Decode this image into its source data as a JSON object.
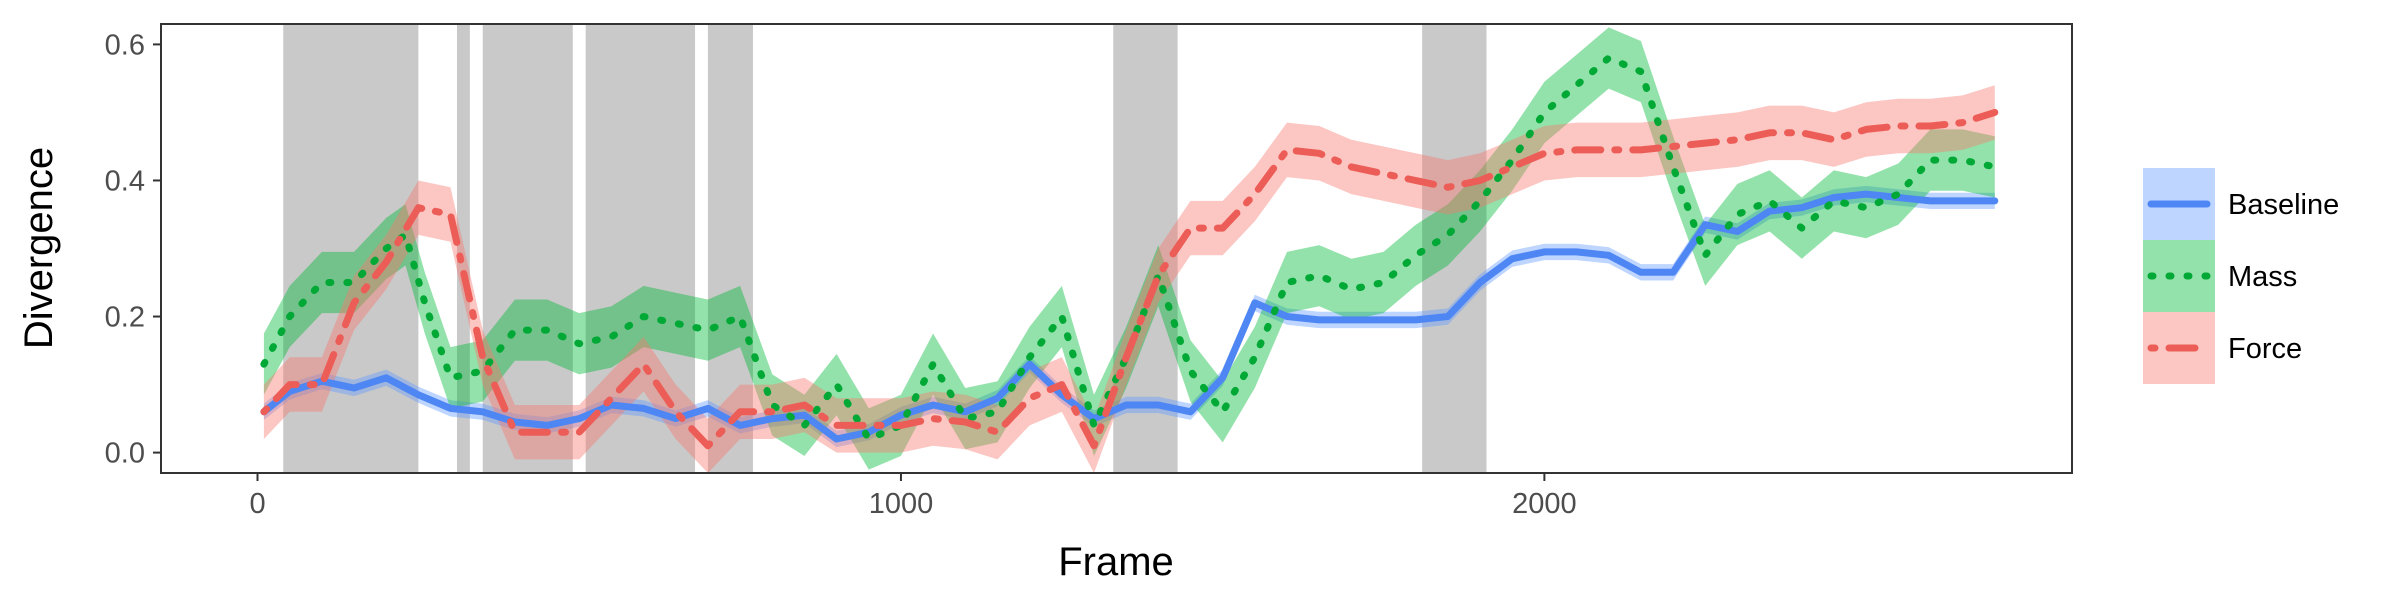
{
  "chart_data": {
    "type": "line",
    "xlabel": "Frame",
    "ylabel": "Divergence",
    "xlim": [
      -150,
      2820
    ],
    "ylim": [
      -0.03,
      0.63
    ],
    "x_ticks": [
      0,
      1000,
      2000
    ],
    "x_tick_labels": [
      "0",
      "1000",
      "2000"
    ],
    "y_ticks": [
      0.0,
      0.2,
      0.4,
      0.6
    ],
    "y_tick_labels": [
      "0.0",
      "0.2",
      "0.4",
      "0.6"
    ],
    "grid": false,
    "legend_position": "right",
    "shaded_regions": [
      [
        40,
        250
      ],
      [
        310,
        330
      ],
      [
        350,
        490
      ],
      [
        510,
        680
      ],
      [
        700,
        770
      ],
      [
        1330,
        1430
      ],
      [
        1810,
        1910
      ]
    ],
    "series": [
      {
        "name": "Baseline",
        "color": "#619CFF",
        "line_color": "#4E86F4",
        "dash": "solid",
        "x": [
          10,
          50,
          100,
          150,
          200,
          250,
          300,
          350,
          400,
          450,
          500,
          550,
          600,
          650,
          700,
          750,
          800,
          850,
          900,
          950,
          1000,
          1050,
          1100,
          1150,
          1200,
          1250,
          1300,
          1350,
          1400,
          1450,
          1500,
          1550,
          1600,
          1650,
          1700,
          1750,
          1800,
          1850,
          1900,
          1950,
          2000,
          2050,
          2100,
          2150,
          2200,
          2250,
          2300,
          2350,
          2400,
          2450,
          2500,
          2550,
          2600,
          2650,
          2700
        ],
        "y": [
          0.06,
          0.09,
          0.105,
          0.095,
          0.11,
          0.085,
          0.065,
          0.06,
          0.045,
          0.04,
          0.05,
          0.07,
          0.065,
          0.05,
          0.065,
          0.04,
          0.05,
          0.055,
          0.02,
          0.03,
          0.055,
          0.07,
          0.06,
          0.08,
          0.13,
          0.085,
          0.05,
          0.07,
          0.07,
          0.06,
          0.11,
          0.22,
          0.2,
          0.195,
          0.195,
          0.195,
          0.195,
          0.2,
          0.25,
          0.285,
          0.295,
          0.295,
          0.29,
          0.265,
          0.265,
          0.335,
          0.325,
          0.355,
          0.36,
          0.375,
          0.38,
          0.375,
          0.37,
          0.37,
          0.37
        ],
        "band": 0.012
      },
      {
        "name": "Mass",
        "color": "#00BA38",
        "line_color": "#00A835",
        "dash": "dotted",
        "x": [
          10,
          50,
          100,
          150,
          200,
          230,
          260,
          300,
          350,
          400,
          450,
          500,
          550,
          600,
          650,
          700,
          750,
          800,
          850,
          900,
          950,
          1000,
          1050,
          1100,
          1150,
          1200,
          1250,
          1300,
          1350,
          1400,
          1450,
          1500,
          1550,
          1600,
          1650,
          1700,
          1750,
          1800,
          1850,
          1900,
          1950,
          2000,
          2050,
          2100,
          2150,
          2200,
          2250,
          2300,
          2350,
          2400,
          2450,
          2500,
          2550,
          2600,
          2650,
          2700
        ],
        "y": [
          0.13,
          0.2,
          0.25,
          0.25,
          0.3,
          0.32,
          0.22,
          0.11,
          0.12,
          0.18,
          0.18,
          0.16,
          0.17,
          0.2,
          0.19,
          0.18,
          0.2,
          0.07,
          0.04,
          0.1,
          0.02,
          0.04,
          0.13,
          0.05,
          0.06,
          0.14,
          0.2,
          0.04,
          0.14,
          0.26,
          0.12,
          0.06,
          0.14,
          0.25,
          0.26,
          0.24,
          0.25,
          0.29,
          0.32,
          0.37,
          0.43,
          0.5,
          0.54,
          0.58,
          0.56,
          0.42,
          0.29,
          0.35,
          0.37,
          0.33,
          0.37,
          0.36,
          0.38,
          0.43,
          0.43,
          0.42
        ],
        "band": 0.045
      },
      {
        "name": "Force",
        "color": "#F8766D",
        "line_color": "#EC5D57",
        "dash": "dotdash",
        "x": [
          10,
          50,
          100,
          150,
          200,
          250,
          300,
          350,
          400,
          450,
          500,
          550,
          600,
          650,
          700,
          750,
          800,
          850,
          900,
          950,
          1000,
          1050,
          1100,
          1150,
          1200,
          1250,
          1300,
          1350,
          1400,
          1450,
          1500,
          1550,
          1600,
          1650,
          1700,
          1750,
          1800,
          1850,
          1900,
          1950,
          2000,
          2050,
          2100,
          2150,
          2200,
          2250,
          2300,
          2350,
          2400,
          2450,
          2500,
          2550,
          2600,
          2650,
          2700
        ],
        "y": [
          0.06,
          0.1,
          0.1,
          0.22,
          0.28,
          0.36,
          0.35,
          0.14,
          0.03,
          0.03,
          0.03,
          0.08,
          0.13,
          0.06,
          0.01,
          0.06,
          0.06,
          0.07,
          0.04,
          0.04,
          0.04,
          0.05,
          0.045,
          0.03,
          0.08,
          0.1,
          0.01,
          0.14,
          0.26,
          0.33,
          0.33,
          0.38,
          0.445,
          0.44,
          0.42,
          0.41,
          0.4,
          0.39,
          0.4,
          0.42,
          0.44,
          0.445,
          0.445,
          0.445,
          0.45,
          0.455,
          0.46,
          0.47,
          0.47,
          0.46,
          0.475,
          0.48,
          0.48,
          0.485,
          0.5
        ],
        "band": 0.04
      }
    ]
  }
}
